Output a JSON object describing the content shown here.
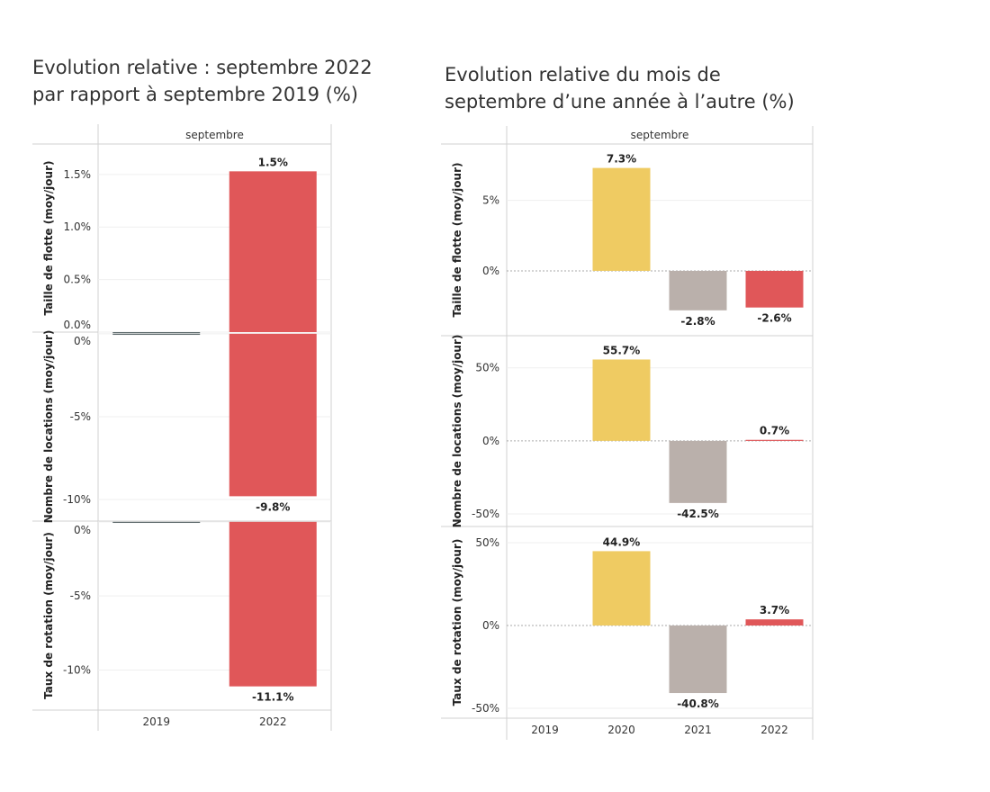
{
  "colors": {
    "2019": "#5f6b6d",
    "2020": "#efcb62",
    "2021": "#bab0ab",
    "2022": "#e05759"
  },
  "chart_data": [
    {
      "type": "bar",
      "title": "Evolution relative : septembre 2022 par rapport à septembre 2019 (%)",
      "column_header": "septembre",
      "categories": [
        "2019",
        "2022"
      ],
      "grid": true,
      "panels": [
        {
          "ylabel": "Taille de flotte (moy/jour)",
          "ylim": [
            0,
            1.79
          ],
          "ticks": [
            0,
            0.5,
            1.0,
            1.5
          ],
          "tick_labels": [
            "0.0%",
            "0.5%",
            "1.0%",
            "1.5%"
          ],
          "values": [
            0,
            1.53
          ],
          "labels": [
            null,
            "1.5%"
          ]
        },
        {
          "ylabel": "Nombre de locations (moy/jour)",
          "ylim": [
            -11.3,
            0.1
          ],
          "ticks": [
            0,
            -5,
            -10
          ],
          "tick_labels": [
            "0%",
            "-5%",
            "-10%"
          ],
          "values": [
            0,
            -9.8
          ],
          "labels": [
            null,
            "-9.8%"
          ]
        },
        {
          "ylabel": "Taux de rotation (moy/jour)",
          "ylim": [
            -12.7,
            0.05
          ],
          "ticks": [
            0,
            -5,
            -10
          ],
          "tick_labels": [
            "0%",
            "-5%",
            "-10%"
          ],
          "values": [
            0,
            -11.1
          ],
          "labels": [
            null,
            "-11.1%"
          ]
        }
      ]
    },
    {
      "type": "bar",
      "title": "Evolution relative du mois de septembre d’une année à l’autre (%)",
      "column_header": "septembre",
      "categories": [
        "2019",
        "2020",
        "2021",
        "2022"
      ],
      "grid": true,
      "panels": [
        {
          "ylabel": "Taille de flotte (moy/jour)",
          "ylim": [
            -4.6,
            9.0
          ],
          "ticks": [
            0,
            5
          ],
          "tick_labels": [
            "0%",
            "5%"
          ],
          "values": [
            null,
            7.3,
            -2.8,
            -2.6
          ],
          "labels": [
            null,
            "7.3%",
            "-2.8%",
            "-2.6%"
          ]
        },
        {
          "ylabel": "Nombre de locations (moy/jour)",
          "ylim": [
            -58.6,
            72
          ],
          "ticks": [
            -50,
            0,
            50
          ],
          "tick_labels": [
            "-50%",
            "0%",
            "50%"
          ],
          "values": [
            null,
            55.7,
            -42.5,
            0.7
          ],
          "labels": [
            null,
            "55.7%",
            "-42.5%",
            "0.7%"
          ]
        },
        {
          "ylabel": "Taux de rotation (moy/jour)",
          "ylim": [
            -56,
            59.8
          ],
          "ticks": [
            -50,
            0,
            50
          ],
          "tick_labels": [
            "-50%",
            "0%",
            "50%"
          ],
          "values": [
            null,
            44.9,
            -40.8,
            3.7
          ],
          "labels": [
            null,
            "44.9%",
            "-40.8%",
            "3.7%"
          ]
        }
      ]
    }
  ]
}
